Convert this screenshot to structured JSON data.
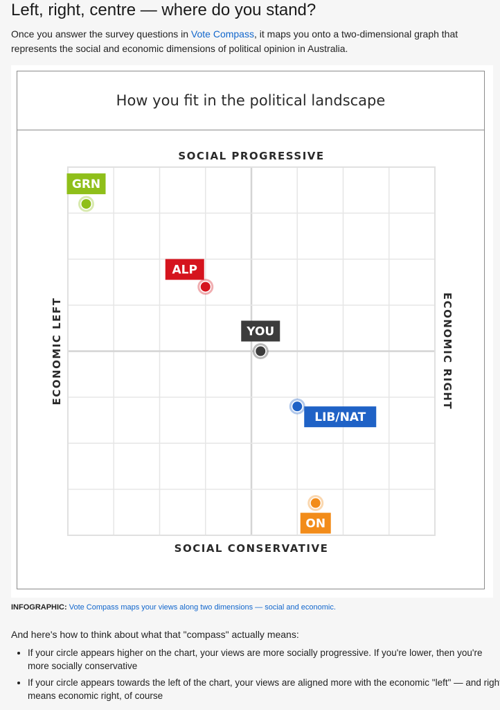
{
  "article": {
    "headline": "Left, right, centre — where do you stand?",
    "intro_before": "Once you answer the survey questions in ",
    "intro_link": "Vote Compass",
    "intro_after": ", it maps you onto a two-dimensional graph that represents the social and economic dimensions of political opinion in Australia.",
    "caption_label": "INFOGRAPHIC:",
    "caption_text": "Vote Compass maps your views along two dimensions — social and economic.",
    "lead": "And here's how to think about what that \"compass\" actually means:",
    "points": [
      "If your circle appears higher on the chart, your views are more socially progressive. If you're lower, then you're more socially conservative",
      "If your circle appears towards the left of the chart, your views are aligned more with the economic \"left\" — and right means economic right, of course"
    ]
  },
  "chart_data": {
    "type": "scatter",
    "title": "How you fit in the political landscape",
    "axis_labels": {
      "top": "SOCIAL PROGRESSIVE",
      "bottom": "SOCIAL CONSERVATIVE",
      "left": "ECONOMIC LEFT",
      "right": "ECONOMIC RIGHT"
    },
    "xlim": [
      0,
      8
    ],
    "ylim": [
      0,
      8
    ],
    "grid": true,
    "points": [
      {
        "label": "GRN",
        "x": 0.4,
        "y": 7.2,
        "color": "#8fbf1a",
        "label_pos": "above"
      },
      {
        "label": "ALP",
        "x": 3.0,
        "y": 5.4,
        "color": "#d5141e",
        "label_pos": "above-left"
      },
      {
        "label": "YOU",
        "x": 4.2,
        "y": 4.0,
        "color": "#3c3c3c",
        "label_pos": "above"
      },
      {
        "label": "LIB/NAT",
        "x": 5.0,
        "y": 2.8,
        "color": "#1f62c6",
        "label_pos": "below-right"
      },
      {
        "label": "ON",
        "x": 5.4,
        "y": 0.7,
        "color": "#f28c1a",
        "label_pos": "below"
      }
    ]
  }
}
